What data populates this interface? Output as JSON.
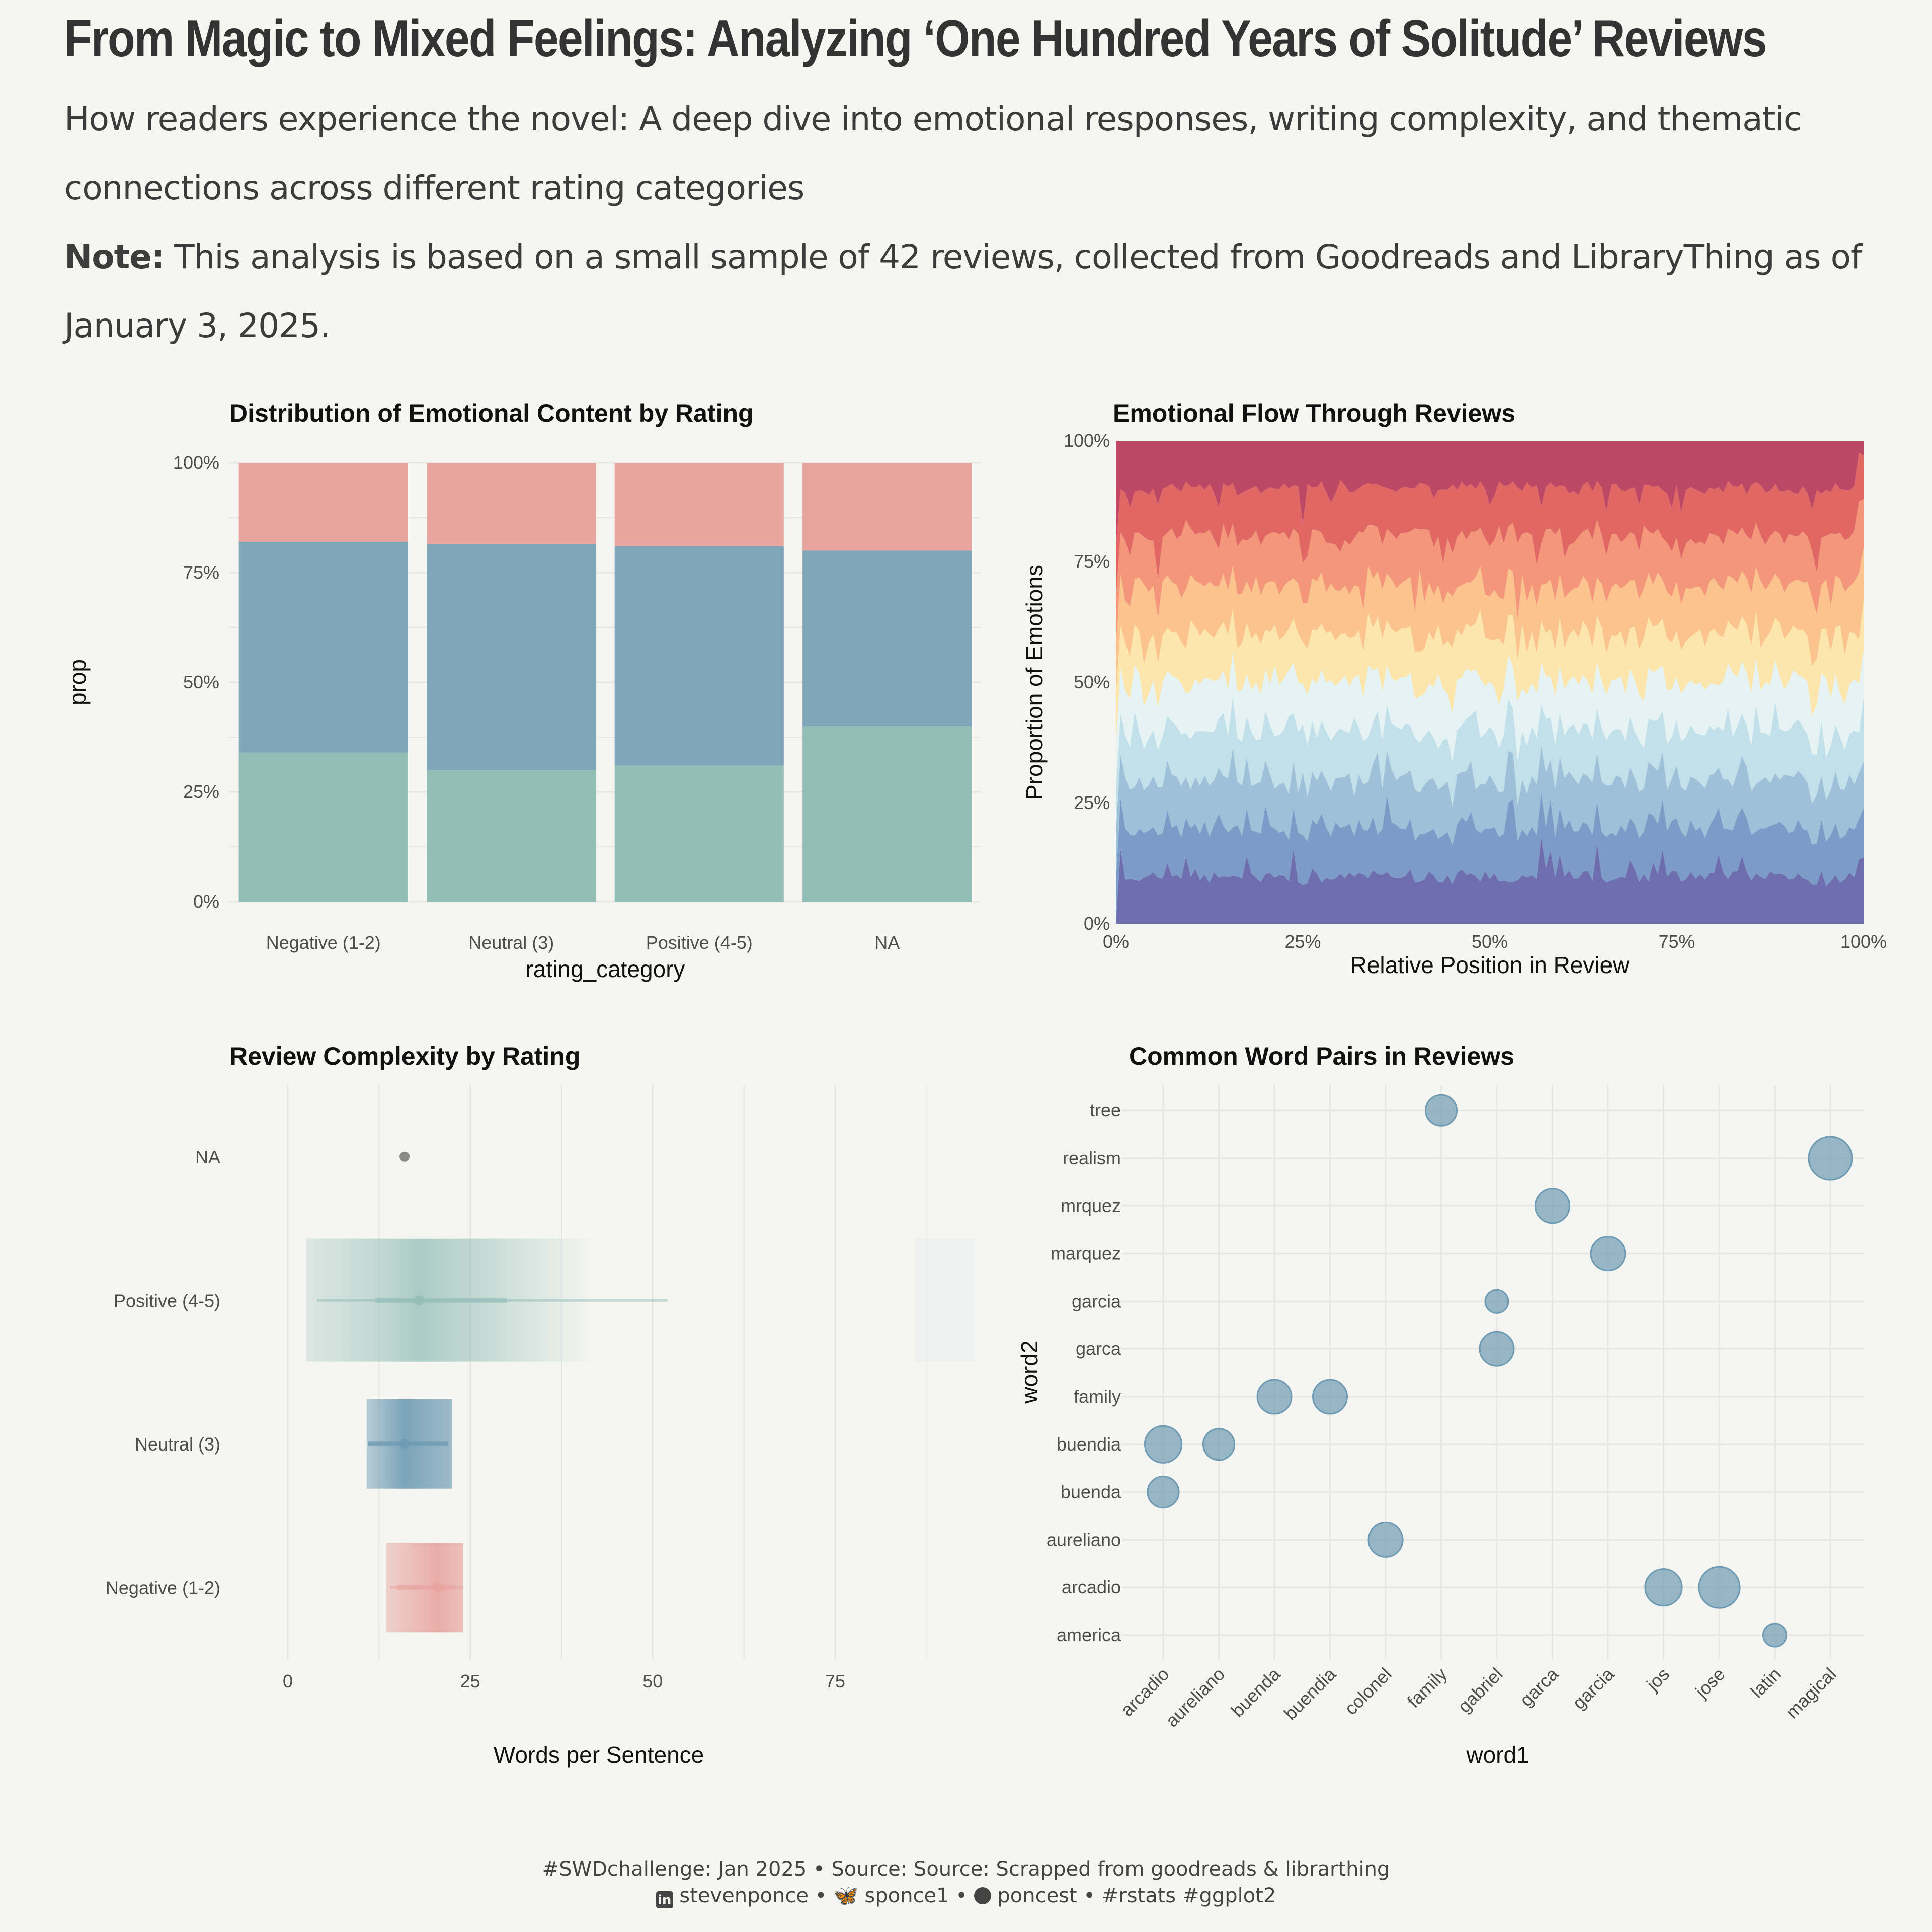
{
  "header": {
    "title": "From Magic to Mixed Feelings: Analyzing ‘One Hundred Years of Solitude’ Reviews",
    "subtitle": "How readers experience the novel: A deep dive into emotional responses, writing complexity, and thematic connections across different rating categories",
    "note_label": "Note:",
    "note_text": " This analysis is based on a small sample of 42 reviews, collected from Goodreads and LibraryThing as of January 3, 2025."
  },
  "caption": {
    "line1": "#SWDchallenge:  Jan 2025 • Source: Source: Scrapped from goodreads & librarthing",
    "linkedin": "stevenponce",
    "bluesky": "sponce1",
    "github": "poncest",
    "tags": "#rstats #ggplot2",
    "sep": " • "
  },
  "chart_data": [
    {
      "id": "emotion_distribution",
      "type": "bar",
      "stacked": true,
      "title": "Distribution of Emotional Content by Rating",
      "xlabel": "rating_category",
      "ylabel": "prop",
      "categories": [
        "Negative (1-2)",
        "Neutral (3)",
        "Positive (4-5)",
        "NA"
      ],
      "ylim": [
        0,
        1
      ],
      "yticks": [
        "0%",
        "25%",
        "50%",
        "75%",
        "100%"
      ],
      "series": [
        {
          "values": [
            0.34,
            0.3,
            0.31,
            0.4
          ],
          "color": "#93bdb7"
        },
        {
          "values": [
            0.48,
            0.515,
            0.5,
            0.4
          ],
          "color": "#7fa5b8"
        },
        {
          "values": [
            0.18,
            0.185,
            0.19,
            0.2
          ],
          "color": "#e8a5a0"
        }
      ],
      "grid": true,
      "legend": "none"
    },
    {
      "id": "emotional_flow",
      "type": "area",
      "stacked": true,
      "title": "Emotional Flow Through Reviews",
      "xlabel": "Relative Position in Review",
      "ylabel": "Proportion of Emotions",
      "xlim": [
        0,
        1
      ],
      "ylim": [
        0,
        1
      ],
      "xticks": [
        "0%",
        "25%",
        "50%",
        "75%",
        "100%"
      ],
      "yticks": [
        "0%",
        "25%",
        "50%",
        "75%",
        "100%"
      ],
      "layers": 10,
      "colors": [
        "#6e6eae",
        "#7c9bc6",
        "#9ec1d9",
        "#c2e0ea",
        "#e5f3f4",
        "#fce6ab",
        "#fbc38e",
        "#f3967a",
        "#e06764",
        "#bd4866"
      ],
      "base_proportion_each": 0.1,
      "grid": false,
      "legend": "none"
    },
    {
      "id": "review_complexity",
      "type": "scatter",
      "subtype": "gradient-interval",
      "title": "Review Complexity by Rating",
      "xlabel": "Words per Sentence",
      "xlim": [
        -8,
        95
      ],
      "xticks": [
        0,
        25,
        50,
        75
      ],
      "categories": [
        "NA",
        "Positive (4-5)",
        "Neutral (3)",
        "Negative (1-2)"
      ],
      "series": [
        {
          "category": "NA",
          "median": 16,
          "q1": null,
          "q3": null,
          "min": null,
          "max": null,
          "color": "#777777"
        },
        {
          "category": "Positive (4-5)",
          "median": 18,
          "q1": 12,
          "q3": 30,
          "min": 4,
          "max": 52,
          "box_low": 2.5,
          "box_high": 42,
          "outlier_band": [
            86,
            94
          ],
          "color": "#93bdb7"
        },
        {
          "category": "Neutral (3)",
          "median": 16,
          "q1": 11,
          "q3": 22,
          "min": 11,
          "max": 22,
          "box_low": 10.8,
          "box_high": 22.5,
          "color": "#6e9bb3"
        },
        {
          "category": "Negative (1-2)",
          "median": 20.5,
          "q1": 15,
          "q3": 23,
          "min": 14,
          "max": 24,
          "box_low": 13.5,
          "box_high": 24,
          "color": "#e8a5a0"
        }
      ],
      "grid": true,
      "legend": "none"
    },
    {
      "id": "word_pairs",
      "type": "scatter",
      "title": "Common Word Pairs in Reviews",
      "xlabel": "word1",
      "ylabel": "word2",
      "x_categories": [
        "arcadio",
        "aureliano",
        "buenda",
        "buendia",
        "colonel",
        "family",
        "gabriel",
        "garca",
        "garcia",
        "jos",
        "jose",
        "latin",
        "magical"
      ],
      "y_categories": [
        "america",
        "arcadio",
        "aureliano",
        "buenda",
        "buendia",
        "family",
        "garca",
        "garcia",
        "marquez",
        "mrquez",
        "realism",
        "tree"
      ],
      "points": [
        {
          "x": "family",
          "y": "tree",
          "n": 3
        },
        {
          "x": "magical",
          "y": "realism",
          "n": 8
        },
        {
          "x": "garca",
          "y": "mrquez",
          "n": 4
        },
        {
          "x": "garcia",
          "y": "marquez",
          "n": 4
        },
        {
          "x": "gabriel",
          "y": "garcia",
          "n": 1
        },
        {
          "x": "gabriel",
          "y": "garca",
          "n": 4
        },
        {
          "x": "buenda",
          "y": "family",
          "n": 4
        },
        {
          "x": "buendia",
          "y": "family",
          "n": 4
        },
        {
          "x": "arcadio",
          "y": "buendia",
          "n": 5
        },
        {
          "x": "aureliano",
          "y": "buendia",
          "n": 3
        },
        {
          "x": "arcadio",
          "y": "buenda",
          "n": 3
        },
        {
          "x": "colonel",
          "y": "aureliano",
          "n": 4
        },
        {
          "x": "jos",
          "y": "arcadio",
          "n": 5
        },
        {
          "x": "jose",
          "y": "arcadio",
          "n": 7
        },
        {
          "x": "latin",
          "y": "america",
          "n": 1
        }
      ],
      "point_color": "#6e9bb3",
      "grid": true,
      "legend": "none"
    }
  ]
}
